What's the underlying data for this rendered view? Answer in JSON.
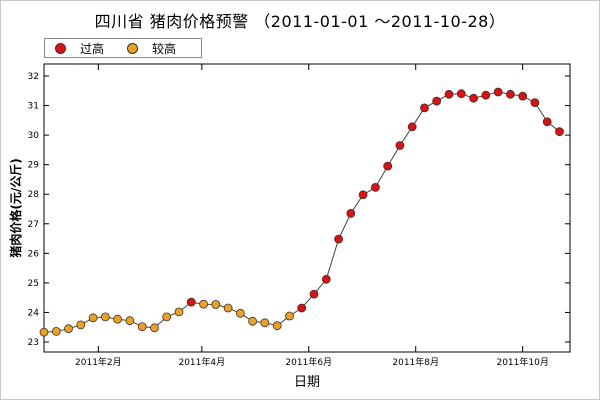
{
  "chart_data": {
    "type": "line",
    "title": "四川省 猪肉价格预警 （2011-01-01 ～2011-10-28）",
    "xlabel": "日期",
    "ylabel": "猪肉价格(元/公斤)",
    "ylim": [
      23,
      32
    ],
    "y_ticks": [
      23,
      24,
      25,
      26,
      27,
      28,
      29,
      30,
      31,
      32
    ],
    "x_ticks": [
      {
        "label": "2011年2月",
        "date": "2011-02-01"
      },
      {
        "label": "2011年4月",
        "date": "2011-04-01"
      },
      {
        "label": "2011年6月",
        "date": "2011-06-01"
      },
      {
        "label": "2011年8月",
        "date": "2011-08-01"
      },
      {
        "label": "2011年10月",
        "date": "2011-10-01"
      }
    ],
    "xlim": [
      "2011-01-01",
      "2011-10-28"
    ],
    "legend": {
      "placement": "top-left",
      "items": [
        {
          "label": "过高",
          "color": "#e01010"
        },
        {
          "label": "较高",
          "color": "#f0a020"
        }
      ]
    },
    "line_color": "#444444",
    "points": [
      {
        "date": "2011-01-01",
        "value": 23.33,
        "level": "较高"
      },
      {
        "date": "2011-01-08",
        "value": 23.36,
        "level": "较高"
      },
      {
        "date": "2011-01-15",
        "value": 23.45,
        "level": "较高"
      },
      {
        "date": "2011-01-22",
        "value": 23.58,
        "level": "较高"
      },
      {
        "date": "2011-01-29",
        "value": 23.82,
        "level": "较高"
      },
      {
        "date": "2011-02-05",
        "value": 23.85,
        "level": "较高"
      },
      {
        "date": "2011-02-12",
        "value": 23.77,
        "level": "较高"
      },
      {
        "date": "2011-02-19",
        "value": 23.72,
        "level": "较高"
      },
      {
        "date": "2011-02-26",
        "value": 23.52,
        "level": "较高"
      },
      {
        "date": "2011-03-05",
        "value": 23.48,
        "level": "较高"
      },
      {
        "date": "2011-03-12",
        "value": 23.85,
        "level": "较高"
      },
      {
        "date": "2011-03-19",
        "value": 24.02,
        "level": "较高"
      },
      {
        "date": "2011-03-26",
        "value": 24.35,
        "level": "过高"
      },
      {
        "date": "2011-04-02",
        "value": 24.28,
        "level": "较高"
      },
      {
        "date": "2011-04-09",
        "value": 24.27,
        "level": "较高"
      },
      {
        "date": "2011-04-16",
        "value": 24.15,
        "level": "较高"
      },
      {
        "date": "2011-04-23",
        "value": 23.97,
        "level": "较高"
      },
      {
        "date": "2011-04-30",
        "value": 23.7,
        "level": "较高"
      },
      {
        "date": "2011-05-07",
        "value": 23.65,
        "level": "较高"
      },
      {
        "date": "2011-05-14",
        "value": 23.55,
        "level": "较高"
      },
      {
        "date": "2011-05-21",
        "value": 23.88,
        "level": "较高"
      },
      {
        "date": "2011-05-28",
        "value": 24.15,
        "level": "过高"
      },
      {
        "date": "2011-06-04",
        "value": 24.62,
        "level": "过高"
      },
      {
        "date": "2011-06-11",
        "value": 25.12,
        "level": "过高"
      },
      {
        "date": "2011-06-18",
        "value": 26.48,
        "level": "过高"
      },
      {
        "date": "2011-06-25",
        "value": 27.35,
        "level": "过高"
      },
      {
        "date": "2011-07-02",
        "value": 27.98,
        "level": "过高"
      },
      {
        "date": "2011-07-09",
        "value": 28.23,
        "level": "过高"
      },
      {
        "date": "2011-07-16",
        "value": 28.95,
        "level": "过高"
      },
      {
        "date": "2011-07-23",
        "value": 29.65,
        "level": "过高"
      },
      {
        "date": "2011-07-30",
        "value": 30.28,
        "level": "过高"
      },
      {
        "date": "2011-08-06",
        "value": 30.92,
        "level": "过高"
      },
      {
        "date": "2011-08-13",
        "value": 31.15,
        "level": "过高"
      },
      {
        "date": "2011-08-20",
        "value": 31.38,
        "level": "过高"
      },
      {
        "date": "2011-08-27",
        "value": 31.4,
        "level": "过高"
      },
      {
        "date": "2011-09-03",
        "value": 31.25,
        "level": "过高"
      },
      {
        "date": "2011-09-10",
        "value": 31.35,
        "level": "过高"
      },
      {
        "date": "2011-09-17",
        "value": 31.46,
        "level": "过高"
      },
      {
        "date": "2011-09-24",
        "value": 31.38,
        "level": "过高"
      },
      {
        "date": "2011-10-01",
        "value": 31.32,
        "level": "过高"
      },
      {
        "date": "2011-10-08",
        "value": 31.1,
        "level": "过高"
      },
      {
        "date": "2011-10-15",
        "value": 30.45,
        "level": "过高"
      },
      {
        "date": "2011-10-22",
        "value": 30.12,
        "level": "过高"
      }
    ]
  }
}
